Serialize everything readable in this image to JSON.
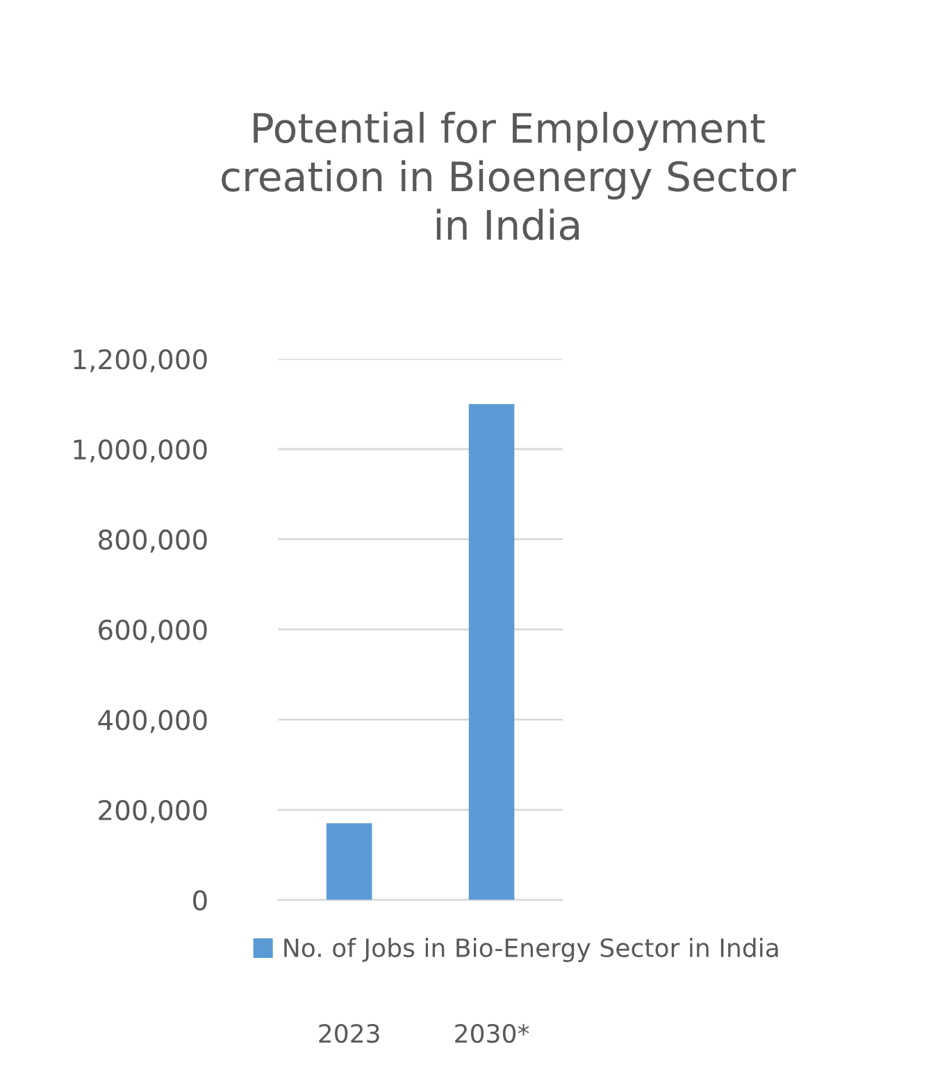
{
  "chart_data": {
    "type": "bar",
    "title": "Potential for Employment\ncreation in Bioenergy Sector\nin India",
    "categories": [
      "2023",
      "2030*"
    ],
    "series": [
      {
        "name": "No. of Jobs in Bio-Energy Sector in India",
        "color": "#5b9bd5",
        "values": [
          170000,
          1100000
        ]
      }
    ],
    "ylim": [
      0,
      1200000
    ],
    "yticks": [
      {
        "value": 0,
        "label": "0"
      },
      {
        "value": 200000,
        "label": "200,000"
      },
      {
        "value": 400000,
        "label": "400,000"
      },
      {
        "value": 600000,
        "label": "600,000"
      },
      {
        "value": 800000,
        "label": "800,000"
      },
      {
        "value": 1000000,
        "label": "1,000,000"
      },
      {
        "value": 1200000,
        "label": "1,200,000"
      }
    ],
    "grid": "y",
    "legend": "bottom"
  }
}
